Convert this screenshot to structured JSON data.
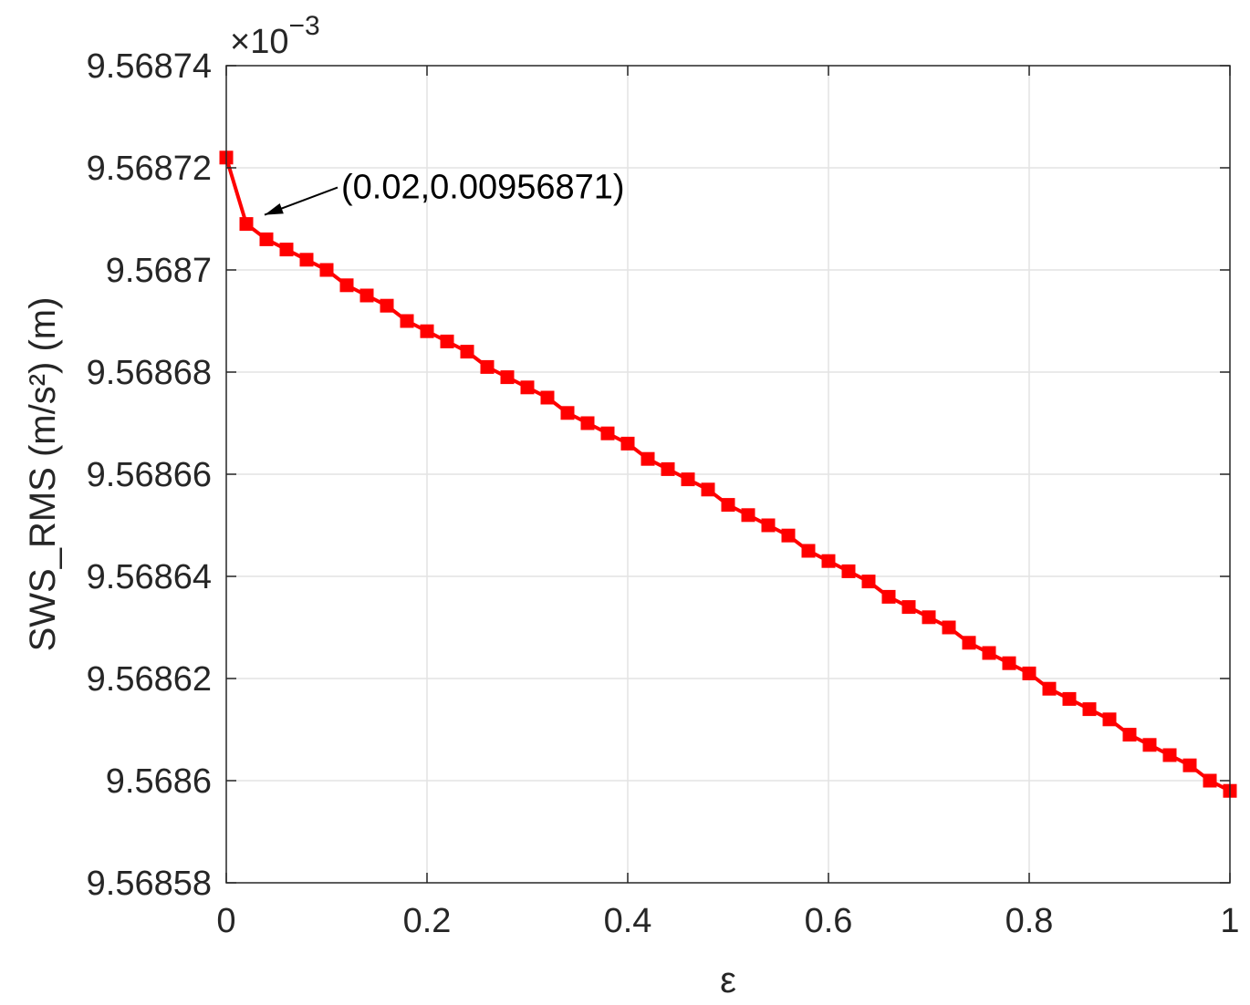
{
  "chart_data": {
    "type": "line",
    "xlabel": "ε",
    "ylabel": "SWS_RMS (m/s²) (m)",
    "xlim": [
      0,
      1
    ],
    "ylim": [
      9.56858,
      9.56874
    ],
    "x_ticks": [
      0,
      0.2,
      0.4,
      0.6,
      0.8,
      1
    ],
    "x_tick_labels": [
      "0",
      "0.2",
      "0.4",
      "0.6",
      "0.8",
      "1"
    ],
    "y_ticks": [
      9.56858,
      9.5686,
      9.56862,
      9.56864,
      9.56866,
      9.56868,
      9.5687,
      9.56872,
      9.56874
    ],
    "y_tick_labels": [
      "9.56858",
      "9.5686",
      "9.56862",
      "9.56864",
      "9.56866",
      "9.56868",
      "9.5687",
      "9.56872",
      "9.56874"
    ],
    "y_multiplier": "×10",
    "y_multiplier_exponent": "−3",
    "grid": true,
    "series": [
      {
        "color": "#ff0000",
        "marker": "square",
        "x": [
          0,
          0.02,
          0.04,
          0.06,
          0.08,
          0.1,
          0.12,
          0.14,
          0.16,
          0.18,
          0.2,
          0.22,
          0.24,
          0.26,
          0.28,
          0.3,
          0.32,
          0.34,
          0.36,
          0.38,
          0.4,
          0.42,
          0.44,
          0.46,
          0.48,
          0.5,
          0.52,
          0.54,
          0.56,
          0.58,
          0.6,
          0.62,
          0.64,
          0.66,
          0.68,
          0.7,
          0.72,
          0.74,
          0.76,
          0.78,
          0.8,
          0.82,
          0.84,
          0.86,
          0.88,
          0.9,
          0.92,
          0.94,
          0.96,
          0.98,
          1
        ],
        "y": [
          9.568722,
          9.568709,
          9.568706,
          9.568704,
          9.568702,
          9.5687,
          9.568697,
          9.568695,
          9.568693,
          9.56869,
          9.568688,
          9.568686,
          9.568684,
          9.568681,
          9.568679,
          9.568677,
          9.568675,
          9.568672,
          9.56867,
          9.568668,
          9.568666,
          9.568663,
          9.568661,
          9.568659,
          9.568657,
          9.568654,
          9.568652,
          9.56865,
          9.568648,
          9.568645,
          9.568643,
          9.568641,
          9.568639,
          9.568636,
          9.568634,
          9.568632,
          9.56863,
          9.568627,
          9.568625,
          9.568623,
          9.568621,
          9.568618,
          9.568616,
          9.568614,
          9.568612,
          9.568609,
          9.568607,
          9.568605,
          9.568603,
          9.5686,
          9.568598
        ]
      }
    ],
    "annotation": {
      "text": "(0.02,0.00956871)",
      "x": 0.02,
      "y": 9.568709
    }
  }
}
